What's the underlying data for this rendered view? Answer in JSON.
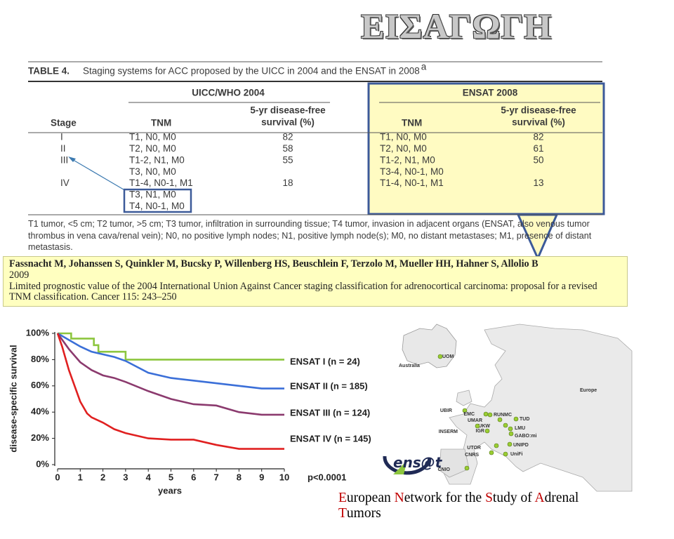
{
  "slide_title": "ΕΙΣΑΓΩΓΗ",
  "table": {
    "label": "TABLE 4.",
    "caption": "Staging systems for ACC proposed by the UICC in 2004 and the ENSAT in 2008",
    "caption_note": "a",
    "stage_header": "Stage",
    "uicc": {
      "group": "UICC/WHO 2004",
      "tnm_header": "TNM",
      "survival_header": [
        "5-yr disease-free",
        "survival (%)"
      ]
    },
    "ensat": {
      "group": "ENSAT 2008",
      "tnm_header": "TNM",
      "survival_header": [
        "5-yr disease-free",
        "survival (%)"
      ]
    },
    "stages": [
      {
        "stage": "I",
        "uicc_tnm": [
          "T1, N0, M0"
        ],
        "uicc_survival": 82,
        "ensat_tnm": [
          "T1, N0, M0"
        ],
        "ensat_survival": 82
      },
      {
        "stage": "II",
        "uicc_tnm": [
          "T2, N0, M0"
        ],
        "uicc_survival": 58,
        "ensat_tnm": [
          "T2, N0, M0"
        ],
        "ensat_survival": 61
      },
      {
        "stage": "III",
        "uicc_tnm": [
          "T1-2, N1, M0",
          "T3, N0, M0"
        ],
        "uicc_survival": 55,
        "ensat_tnm": [
          "T1-2, N1, M0",
          "T3-4, N0-1, M0"
        ],
        "ensat_survival": 50
      },
      {
        "stage": "IV",
        "uicc_tnm": [
          "T1-4, N0-1, M1",
          "T3, N1, M0",
          "T4, N0-1, M0"
        ],
        "uicc_survival": 18,
        "ensat_tnm": [
          "T1-4, N0-1, M1"
        ],
        "ensat_survival": 13
      }
    ],
    "footnote": "T1 tumor, <5 cm; T2 tumor, >5 cm; T3 tumor, infiltration in surrounding tissue; T4 tumor, invasion in adjacent organs (ENSAT, also venous tumor thrombus in vena cava/renal vein); N0, no positive lymph nodes; N1, positive lymph node(s); M0, no distant metastases; M1, presence of distant metastasis."
  },
  "citation": {
    "authors": "Fassnacht M, Johanssen S, Quinkler M, Bucsky P, Willenberg HS, Beuschlein F, Terzolo M, Mueller HH, Hahner S, Allolio B",
    "year": "2009",
    "reference": "Limited prognostic value of the 2004 International Union Against Cancer staging classification for adrenocortical carcinoma: proposal for a revised TNM classification. Cancer 115: 243–250"
  },
  "chart_data": {
    "type": "line",
    "xlabel": "years",
    "ylabel": "disease-specific survival",
    "annotation": "p<0.0001",
    "xlim": [
      0,
      10
    ],
    "xticks": [
      0,
      1,
      2,
      3,
      4,
      5,
      6,
      7,
      8,
      9,
      10
    ],
    "ylim": [
      0,
      100
    ],
    "yticks": [
      {
        "value": 0,
        "label": "0%"
      },
      {
        "value": 20,
        "label": "20%"
      },
      {
        "value": 40,
        "label": "40%"
      },
      {
        "value": 60,
        "label": "60%"
      },
      {
        "value": 80,
        "label": "80%"
      },
      {
        "value": 100,
        "label": "100%"
      }
    ],
    "series": [
      {
        "name": "ENSAT I (n = 24)",
        "color": "#8dc63f",
        "x": [
          0,
          0.6,
          0.6,
          1.6,
          1.6,
          1.8,
          1.8,
          3.0,
          3.0,
          10
        ],
        "values": [
          100,
          100,
          96,
          96,
          91,
          91,
          86,
          86,
          80,
          80
        ]
      },
      {
        "name": "ENSAT II (n = 185)",
        "color": "#3b6fd8",
        "x": [
          0,
          0.5,
          1,
          1.5,
          2,
          2.5,
          3,
          4,
          5,
          6,
          7,
          8,
          9,
          10
        ],
        "values": [
          100,
          95,
          90,
          86,
          84,
          82,
          79,
          70,
          66,
          64,
          62,
          60,
          58,
          58
        ]
      },
      {
        "name": "ENSAT III (n = 124)",
        "color": "#8b3a6e",
        "x": [
          0,
          0.5,
          1,
          1.5,
          2,
          2.5,
          3,
          4,
          5,
          6,
          7,
          8,
          9,
          10
        ],
        "values": [
          100,
          88,
          78,
          72,
          68,
          66,
          63,
          56,
          50,
          46,
          45,
          40,
          38,
          38
        ]
      },
      {
        "name": "ENSAT IV (n = 145)",
        "color": "#e02020",
        "x": [
          0,
          0.2,
          0.5,
          1,
          1.3,
          1.5,
          2,
          2.5,
          3,
          4,
          5,
          6,
          7,
          8,
          9,
          10
        ],
        "values": [
          100,
          90,
          72,
          48,
          39,
          36,
          32,
          27,
          24,
          20,
          19,
          19,
          15,
          12,
          12,
          12
        ]
      }
    ]
  },
  "map": {
    "regions": [
      "Australia",
      "Europe"
    ],
    "centers": [
      "UOM",
      "UBIR",
      "EMC",
      "RUNMC",
      "UMAR",
      "TUD",
      "UKW",
      "LMU",
      "INSERM",
      "IGR",
      "GABO:mi",
      "UTOR",
      "UNIPD",
      "CNRS",
      "UniFi",
      "CNIO"
    ],
    "logo": "ens@t"
  },
  "footer": {
    "words": [
      {
        "initial": "E",
        "rest": "uropean"
      },
      {
        "initial": "N",
        "rest": "etwork"
      },
      "for",
      "the",
      {
        "initial": "S",
        "rest": "tudy"
      },
      "of",
      {
        "initial": "A",
        "rest": "drenal"
      },
      {
        "initial": "T",
        "rest": "umors"
      }
    ]
  }
}
